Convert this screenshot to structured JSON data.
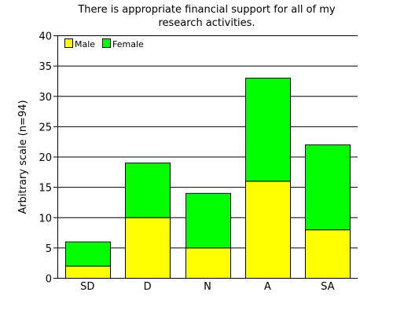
{
  "chart_data": {
    "type": "bar",
    "stacked": true,
    "title": "There is appropriate financial support for all of my research activities.",
    "title_lines": [
      "There is appropriate financial support for all of my",
      "research activities."
    ],
    "xlabel": "",
    "ylabel": "Arbitrary scale (n=94)",
    "categories": [
      "SD",
      "D",
      "N",
      "A",
      "SA"
    ],
    "series": [
      {
        "name": "Male",
        "values": [
          2,
          10,
          5,
          16,
          8
        ],
        "color": "#ffff00"
      },
      {
        "name": "Female",
        "values": [
          4,
          9,
          9,
          17,
          14
        ],
        "color": "#00ff00"
      }
    ],
    "ylim": [
      0,
      40
    ],
    "yticks": [
      "0",
      "5",
      "10",
      "15",
      "20",
      "25",
      "30",
      "35",
      "40"
    ],
    "grid": "horizontal",
    "legend_position": "top-left",
    "colors": {
      "axis": "#000000",
      "grid": "#000000",
      "text": "#000000",
      "background": "#ffffff"
    }
  }
}
